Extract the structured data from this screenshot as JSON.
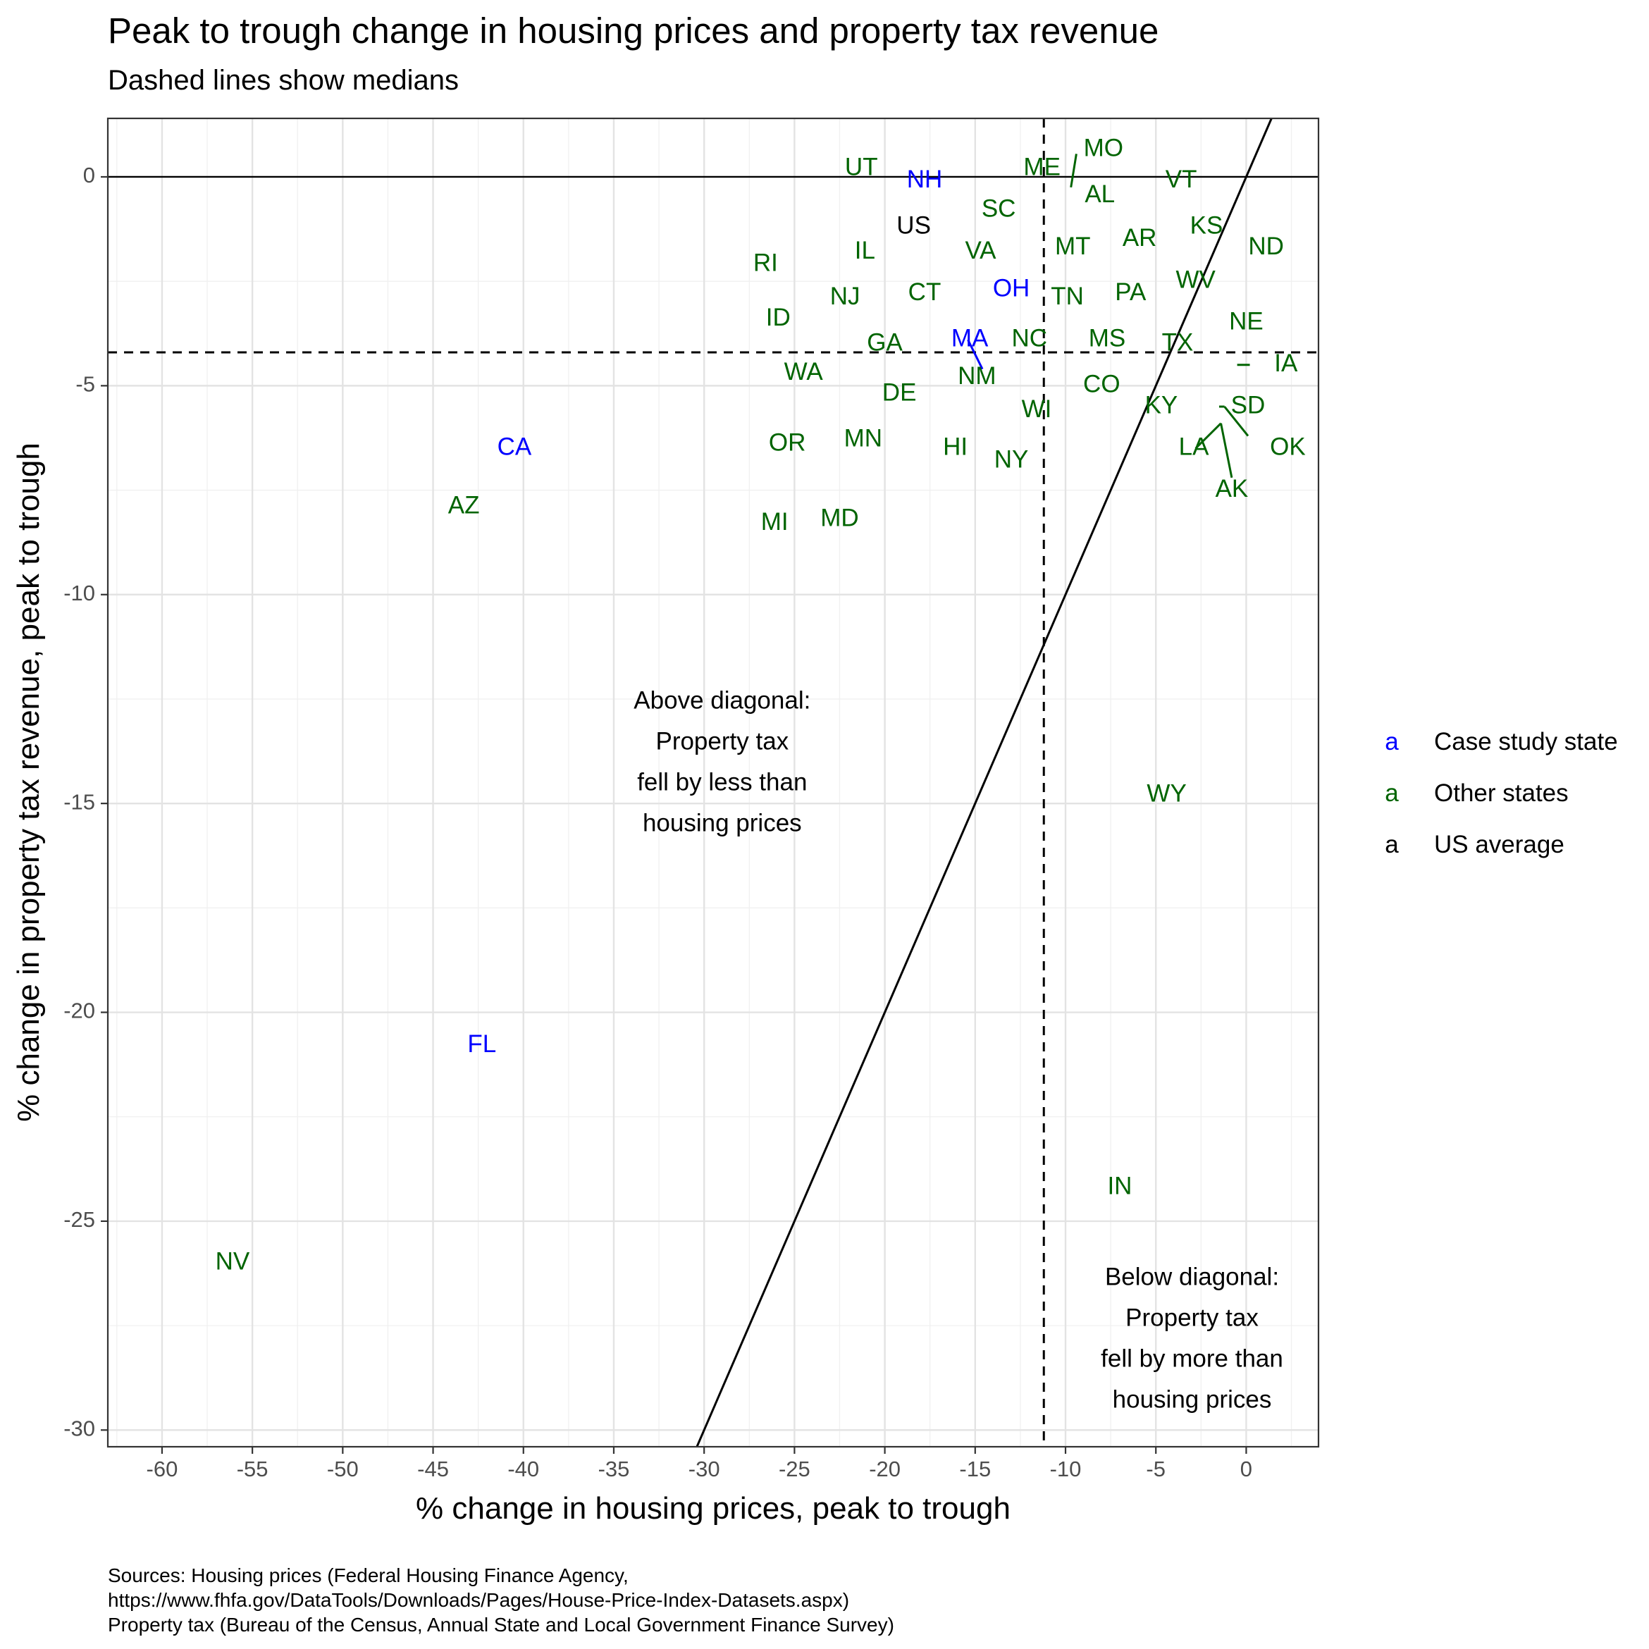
{
  "title": "Peak to trough change in housing prices and property tax revenue",
  "subtitle": "Dashed lines show medians",
  "caption": [
    "Sources: Housing prices (Federal Housing Finance Agency,",
    "https://www.fhfa.gov/DataTools/Downloads/Pages/House-Price-Index-Datasets.aspx)",
    "Property tax (Bureau of the Census, Annual State and Local Government Finance Survey)"
  ],
  "colors": {
    "case_study": "#0000ff",
    "other": "#006400",
    "us": "#000000"
  },
  "legend": {
    "key_glyph": "a",
    "items": [
      {
        "label": "Case study state",
        "group": "case_study"
      },
      {
        "label": "Other states",
        "group": "other"
      },
      {
        "label": "US average",
        "group": "us"
      }
    ]
  },
  "chart_data": {
    "type": "scatter",
    "xlabel": "% change in housing prices, peak to trough",
    "ylabel": "% change in property tax revenue, peak to trough",
    "xlim": [
      -63,
      4
    ],
    "ylim": [
      -30.4,
      1.4
    ],
    "x_ticks": [
      -60,
      -55,
      -50,
      -45,
      -40,
      -35,
      -30,
      -25,
      -20,
      -15,
      -10,
      -5,
      0
    ],
    "y_ticks": [
      0,
      -5,
      -10,
      -15,
      -20,
      -25,
      -30
    ],
    "grid": true,
    "hline_zero": 0,
    "median_x": -11.2,
    "median_y": -4.2,
    "diagonal": "y = x",
    "annotations": [
      {
        "x": -29,
        "y": -14.2,
        "lines": [
          "Above diagonal:",
          "Property tax",
          "fell by less than",
          "housing prices"
        ]
      },
      {
        "x": -3,
        "y": -28.0,
        "lines": [
          "Below diagonal:",
          "Property tax",
          "fell by more than",
          "housing prices"
        ]
      }
    ],
    "points": [
      {
        "label": "UT",
        "x": -21.3,
        "y": 0.2,
        "group": "other"
      },
      {
        "label": "NH",
        "x": -17.8,
        "y": -0.1,
        "group": "case_study"
      },
      {
        "label": "ME",
        "x": -11.3,
        "y": 0.2,
        "group": "other"
      },
      {
        "label": "MO",
        "x": -9.5,
        "y": 0.1,
        "group": "other",
        "lx": -7.9,
        "ly": 0.65
      },
      {
        "label": "AL",
        "x": -9.6,
        "y": -0.3,
        "group": "other",
        "lx": -8.1,
        "ly": -0.45
      },
      {
        "label": "VT",
        "x": -3.6,
        "y": -0.1,
        "group": "other"
      },
      {
        "label": "SC",
        "x": -13.7,
        "y": -0.8,
        "group": "other"
      },
      {
        "label": "US",
        "x": -18.4,
        "y": -1.2,
        "group": "us"
      },
      {
        "label": "KS",
        "x": -2.2,
        "y": -1.2,
        "group": "other"
      },
      {
        "label": "ND",
        "x": 1.1,
        "y": -1.7,
        "group": "other"
      },
      {
        "label": "AR",
        "x": -5.9,
        "y": -1.5,
        "group": "other"
      },
      {
        "label": "MT",
        "x": -9.6,
        "y": -1.7,
        "group": "other"
      },
      {
        "label": "RI",
        "x": -26.6,
        "y": -2.1,
        "group": "other"
      },
      {
        "label": "IL",
        "x": -21.1,
        "y": -1.8,
        "group": "other"
      },
      {
        "label": "VA",
        "x": -14.7,
        "y": -1.8,
        "group": "other"
      },
      {
        "label": "WV",
        "x": -2.8,
        "y": -2.5,
        "group": "other"
      },
      {
        "label": "PA",
        "x": -6.4,
        "y": -2.8,
        "group": "other"
      },
      {
        "label": "TN",
        "x": -9.9,
        "y": -2.9,
        "group": "other"
      },
      {
        "label": "OH",
        "x": -13.0,
        "y": -2.7,
        "group": "case_study"
      },
      {
        "label": "CT",
        "x": -17.8,
        "y": -2.8,
        "group": "other"
      },
      {
        "label": "NJ",
        "x": -22.2,
        "y": -2.9,
        "group": "other"
      },
      {
        "label": "ID",
        "x": -25.9,
        "y": -3.4,
        "group": "other"
      },
      {
        "label": "NE",
        "x": 0.0,
        "y": -3.5,
        "group": "other"
      },
      {
        "label": "GA",
        "x": -20.0,
        "y": -4.0,
        "group": "other"
      },
      {
        "label": "MA",
        "x": -15.4,
        "y": -3.9,
        "group": "case_study",
        "lx": -15.3,
        "ly": -3.9,
        "px": -14.6,
        "py": -4.6
      },
      {
        "label": "NC",
        "x": -12.0,
        "y": -3.9,
        "group": "other"
      },
      {
        "label": "MS",
        "x": -7.7,
        "y": -3.9,
        "group": "other"
      },
      {
        "label": "TX",
        "x": -3.8,
        "y": -4.0,
        "group": "other"
      },
      {
        "label": "IA",
        "x": 0.2,
        "y": -4.5,
        "group": "other",
        "lx": 2.2,
        "ly": -4.5,
        "px": -0.5,
        "py": -4.5
      },
      {
        "label": "WA",
        "x": -24.5,
        "y": -4.7,
        "group": "other"
      },
      {
        "label": "NM",
        "x": -14.9,
        "y": -4.8,
        "group": "other"
      },
      {
        "label": "CO",
        "x": -8.0,
        "y": -5.0,
        "group": "other"
      },
      {
        "label": "DE",
        "x": -19.2,
        "y": -5.2,
        "group": "other"
      },
      {
        "label": "KY",
        "x": -4.7,
        "y": -5.5,
        "group": "other"
      },
      {
        "label": "SD",
        "x": -1.5,
        "y": -5.5,
        "group": "other",
        "lx": 0.1,
        "ly": -5.5,
        "px": -1.2,
        "py": -5.5
      },
      {
        "label": "WI",
        "x": -11.6,
        "y": -5.6,
        "group": "other"
      },
      {
        "label": "OK",
        "x": 0.1,
        "y": -6.2,
        "group": "other",
        "lx": 2.3,
        "ly": -6.5,
        "px": -1.2,
        "py": -5.5
      },
      {
        "label": "LA",
        "x": -2.8,
        "y": -6.5,
        "group": "other",
        "lx": -2.9,
        "ly": -6.5,
        "px": -1.4,
        "py": -5.9
      },
      {
        "label": "CA",
        "x": -40.5,
        "y": -6.5,
        "group": "case_study"
      },
      {
        "label": "OR",
        "x": -25.4,
        "y": -6.4,
        "group": "other"
      },
      {
        "label": "MN",
        "x": -21.2,
        "y": -6.3,
        "group": "other"
      },
      {
        "label": "HI",
        "x": -16.1,
        "y": -6.5,
        "group": "other"
      },
      {
        "label": "NY",
        "x": -13.0,
        "y": -6.8,
        "group": "other"
      },
      {
        "label": "AK",
        "x": -0.8,
        "y": -7.2,
        "group": "other",
        "lx": -0.8,
        "ly": -7.5,
        "px": -1.4,
        "py": -5.9
      },
      {
        "label": "AZ",
        "x": -43.3,
        "y": -7.9,
        "group": "other"
      },
      {
        "label": "MI",
        "x": -26.1,
        "y": -8.3,
        "group": "other"
      },
      {
        "label": "MD",
        "x": -22.5,
        "y": -8.2,
        "group": "other"
      },
      {
        "label": "WY",
        "x": -4.4,
        "y": -14.8,
        "group": "other"
      },
      {
        "label": "FL",
        "x": -42.3,
        "y": -20.8,
        "group": "case_study"
      },
      {
        "label": "IN",
        "x": -7.0,
        "y": -24.2,
        "group": "other"
      },
      {
        "label": "NV",
        "x": -56.1,
        "y": -26.0,
        "group": "other"
      }
    ]
  }
}
